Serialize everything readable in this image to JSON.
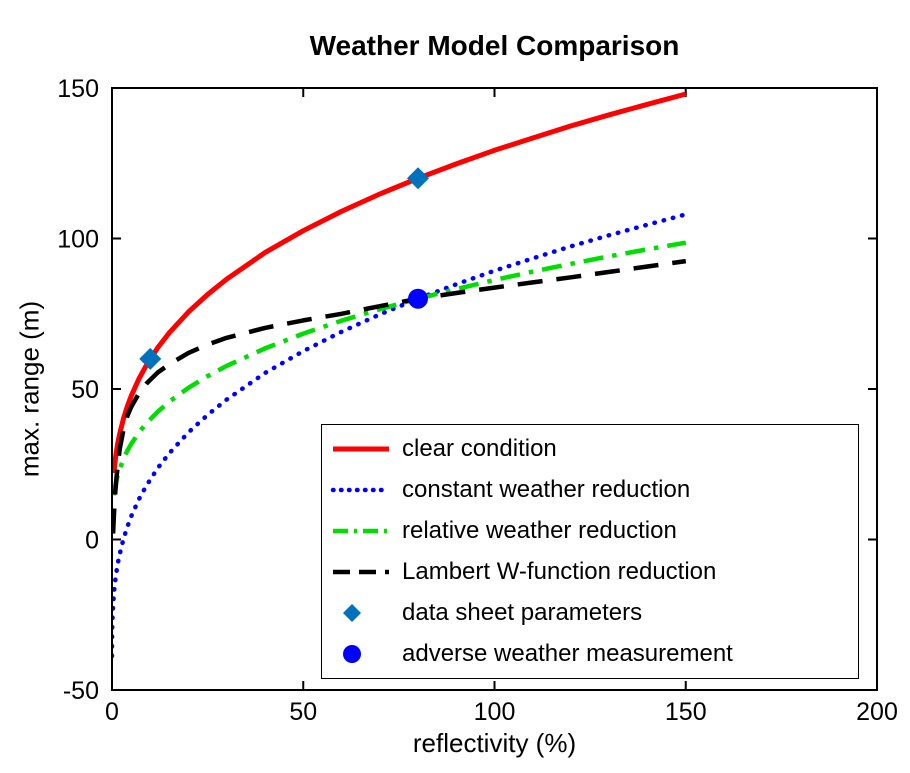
{
  "chart_data": {
    "type": "line",
    "title": "Weather Model Comparison",
    "xlabel": "reflectivity (%)",
    "ylabel": "max. range (m)",
    "xlim": [
      0,
      200
    ],
    "ylim": [
      -50,
      150
    ],
    "xticks": [
      0,
      50,
      100,
      150,
      200
    ],
    "yticks": [
      -50,
      0,
      50,
      100,
      150
    ],
    "grid": false,
    "legend_position": "lower-right-inside",
    "axis_color": "#000000",
    "background": "#ffffff",
    "series": [
      {
        "name": "clear condition",
        "color": "#ff0000",
        "style": "solid",
        "width": 5,
        "x": [
          0.5,
          0.7,
          1,
          1.5,
          2,
          3,
          4,
          5,
          7,
          9,
          12,
          15,
          20,
          25,
          30,
          40,
          50,
          60,
          70,
          80,
          90,
          100,
          110,
          120,
          130,
          140,
          150
        ],
        "y": [
          22.1,
          24.7,
          27.9,
          31.9,
          35.1,
          40.2,
          44.2,
          47.6,
          53.3,
          57.9,
          63.8,
          68.7,
          75.6,
          81.4,
          86.5,
          95.3,
          102.6,
          109,
          114.8,
          120,
          124.8,
          129.3,
          133.4,
          137.4,
          141.1,
          144.6,
          148
        ]
      },
      {
        "name": "constant weather reduction",
        "color": "#0000ff",
        "style": "dotted",
        "width": 4.5,
        "x": [
          0.0001,
          0.001,
          0.01,
          0.05,
          0.1,
          0.2,
          0.5,
          0.7,
          1,
          1.5,
          2,
          3,
          4,
          5,
          7,
          9,
          12,
          15,
          20,
          25,
          30,
          40,
          50,
          60,
          70,
          80,
          90,
          100,
          110,
          120,
          130,
          140,
          150
        ],
        "y": [
          -38.7,
          -37.2,
          -34,
          -29.7,
          -27.1,
          -23.7,
          -17.9,
          -15.3,
          -12.1,
          -8.1,
          -4.9,
          0.2,
          4.2,
          7.6,
          13.3,
          17.9,
          23.8,
          28.7,
          35.6,
          41.4,
          46.5,
          55.3,
          62.6,
          69,
          74.8,
          80,
          84.8,
          89.3,
          93.4,
          97.4,
          101.1,
          104.6,
          108
        ]
      },
      {
        "name": "relative weather reduction",
        "color": "#00dd00",
        "style": "dashdot",
        "width": 4.5,
        "x": [
          0.5,
          0.7,
          1,
          1.5,
          2,
          3,
          4,
          5,
          7,
          9,
          12,
          15,
          20,
          25,
          30,
          40,
          50,
          60,
          70,
          80,
          90,
          100,
          110,
          120,
          130,
          140,
          150
        ],
        "y": [
          14.7,
          16.5,
          18.6,
          21.3,
          23.4,
          26.8,
          29.5,
          31.7,
          35.5,
          38.6,
          42.5,
          45.8,
          50.4,
          54.3,
          57.7,
          63.5,
          68.4,
          72.7,
          76.5,
          80,
          83.2,
          86.2,
          89,
          91.6,
          94.1,
          96.4,
          98.6
        ]
      },
      {
        "name": "Lambert W-function reduction",
        "color": "#000000",
        "style": "dashed",
        "width": 4.5,
        "x": [
          0.3,
          0.5,
          0.8,
          1.2,
          2,
          3,
          4,
          5,
          7,
          9,
          12,
          15,
          20,
          25,
          30,
          40,
          50,
          60,
          70,
          80,
          90,
          100,
          110,
          120,
          130,
          140,
          150
        ],
        "y": [
          2,
          8,
          15,
          21,
          30,
          36.5,
          41,
          44,
          48.5,
          51.8,
          55.5,
          58.2,
          62,
          64.8,
          67,
          70.3,
          72.8,
          75,
          77.5,
          80,
          81.9,
          83.7,
          85.4,
          87.1,
          88.9,
          90.7,
          92.5
        ]
      }
    ],
    "markers": [
      {
        "name": "data sheet parameters",
        "shape": "diamond",
        "color": "#0072bd",
        "points": [
          [
            10,
            60
          ],
          [
            80,
            120
          ]
        ]
      },
      {
        "name": "adverse weather measurement",
        "shape": "circle",
        "color": "#0000ff",
        "points": [
          [
            80,
            80
          ]
        ]
      }
    ]
  }
}
